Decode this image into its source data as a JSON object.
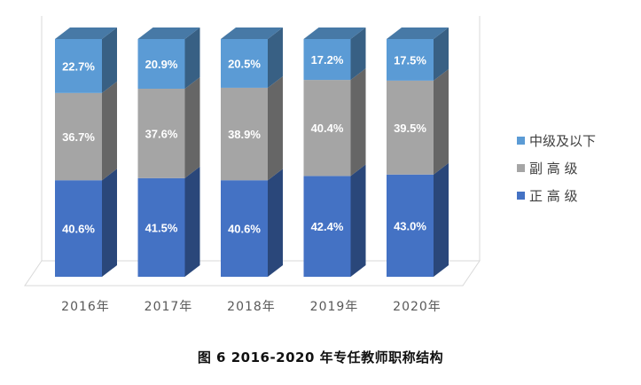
{
  "caption": "图 6  2016-2020 年专任教师职称结构",
  "colors": {
    "正 高 级": "#4472c4",
    "副 高 级": "#a5a5a5",
    "中级及以下": "#5b9bd5"
  },
  "chart_data": {
    "type": "bar",
    "stacked": true,
    "three_d": true,
    "categories": [
      "2016年",
      "2017年",
      "2018年",
      "2019年",
      "2020年"
    ],
    "ylim": [
      0,
      100
    ],
    "series": [
      {
        "name": "正 高 级",
        "values": [
          40.6,
          41.5,
          40.6,
          42.4,
          43.0
        ],
        "labels": [
          "40.6%",
          "41.5%",
          "40.6%",
          "42.4%",
          "43.0%"
        ]
      },
      {
        "name": "副 高 级",
        "values": [
          36.7,
          37.6,
          38.9,
          40.4,
          39.5
        ],
        "labels": [
          "36.7%",
          "37.6%",
          "38.9%",
          "40.4%",
          "39.5%"
        ]
      },
      {
        "name": "中级及以下",
        "values": [
          22.7,
          20.9,
          20.5,
          17.2,
          17.5
        ],
        "labels": [
          "22.7%",
          "20.9%",
          "20.5%",
          "17.2%",
          "17.5%"
        ]
      }
    ],
    "legend_position": "right",
    "legend_order": [
      "中级及以下",
      "副 高 级",
      "正 高 级"
    ],
    "grid": false
  }
}
